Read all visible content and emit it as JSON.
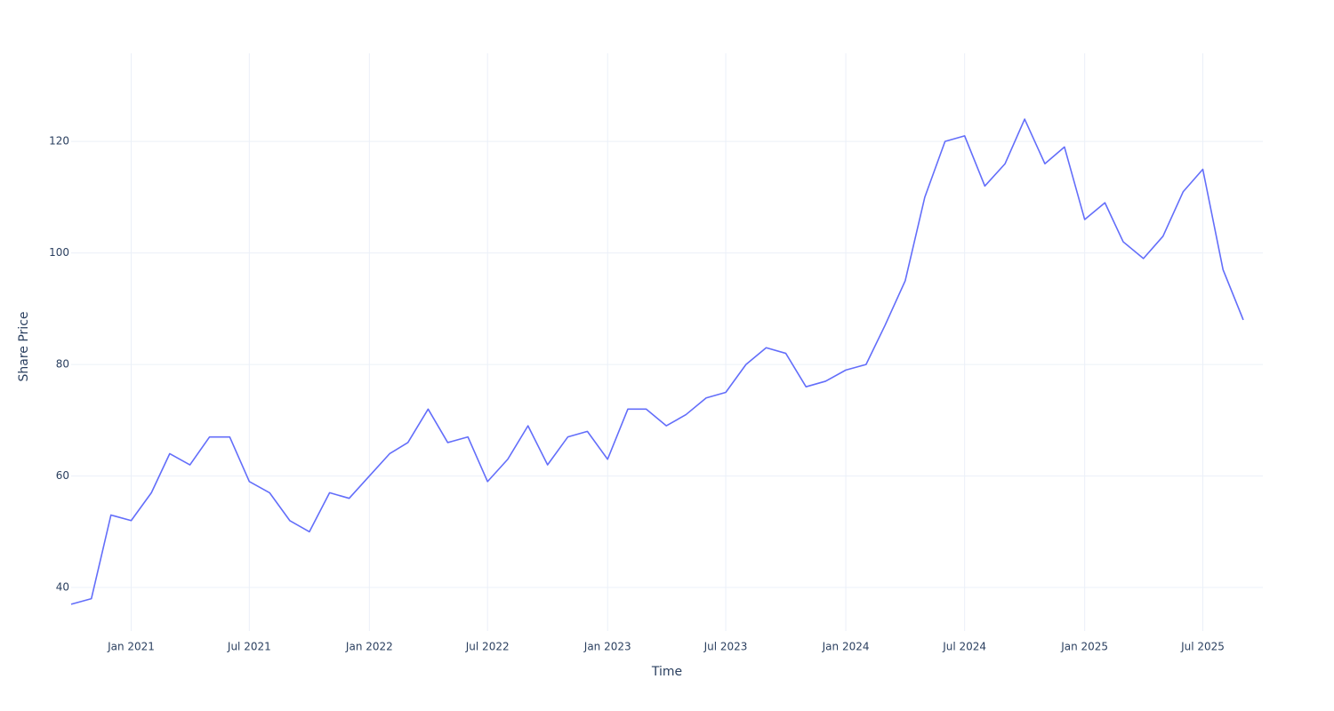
{
  "chart_data": {
    "type": "line",
    "x_label": "Time",
    "y_label": "Share Price",
    "x": [
      "2020-10",
      "2020-11",
      "2020-12",
      "2021-01",
      "2021-02",
      "2021-03",
      "2021-04",
      "2021-05",
      "2021-06",
      "2021-07",
      "2021-08",
      "2021-09",
      "2021-10",
      "2021-11",
      "2021-12",
      "2022-01",
      "2022-02",
      "2022-03",
      "2022-04",
      "2022-05",
      "2022-06",
      "2022-07",
      "2022-08",
      "2022-09",
      "2022-10",
      "2022-11",
      "2022-12",
      "2023-01",
      "2023-02",
      "2023-03",
      "2023-04",
      "2023-05",
      "2023-06",
      "2023-07",
      "2023-08",
      "2023-09",
      "2023-10",
      "2023-11",
      "2023-12",
      "2024-01",
      "2024-02",
      "2024-03",
      "2024-04",
      "2024-05",
      "2024-06",
      "2024-07",
      "2024-08",
      "2024-09",
      "2024-10",
      "2024-11",
      "2024-12",
      "2025-01",
      "2025-02",
      "2025-03",
      "2025-04",
      "2025-05",
      "2025-06",
      "2025-07",
      "2025-08",
      "2025-09"
    ],
    "series": [
      {
        "color": "#636efa",
        "values": [
          37,
          38,
          53,
          52,
          57,
          64,
          62,
          67,
          67,
          59,
          57,
          52,
          50,
          57,
          56,
          60,
          64,
          66,
          72,
          66,
          67,
          59,
          63,
          69,
          62,
          67,
          68,
          63,
          72,
          72,
          69,
          71,
          74,
          75,
          80,
          83,
          82,
          76,
          77,
          79,
          80,
          87,
          95,
          110,
          120,
          121,
          112,
          116,
          124,
          116,
          119,
          106,
          109,
          102,
          99,
          103,
          111,
          115,
          97,
          88
        ]
      }
    ],
    "xlim": [
      "2020-10",
      "2025-10"
    ],
    "xticks": [
      {
        "value": "2021-01",
        "label": "Jan 2021"
      },
      {
        "value": "2021-07",
        "label": "Jul 2021"
      },
      {
        "value": "2022-01",
        "label": "Jan 2022"
      },
      {
        "value": "2022-07",
        "label": "Jul 2022"
      },
      {
        "value": "2023-01",
        "label": "Jan 2023"
      },
      {
        "value": "2023-07",
        "label": "Jul 2023"
      },
      {
        "value": "2024-01",
        "label": "Jan 2024"
      },
      {
        "value": "2024-07",
        "label": "Jul 2024"
      },
      {
        "value": "2025-01",
        "label": "Jan 2025"
      },
      {
        "value": "2025-07",
        "label": "Jul 2025"
      }
    ],
    "ylim": [
      32.2,
      135.8
    ],
    "yticks": [
      40,
      60,
      80,
      100,
      120
    ],
    "grid": true
  }
}
